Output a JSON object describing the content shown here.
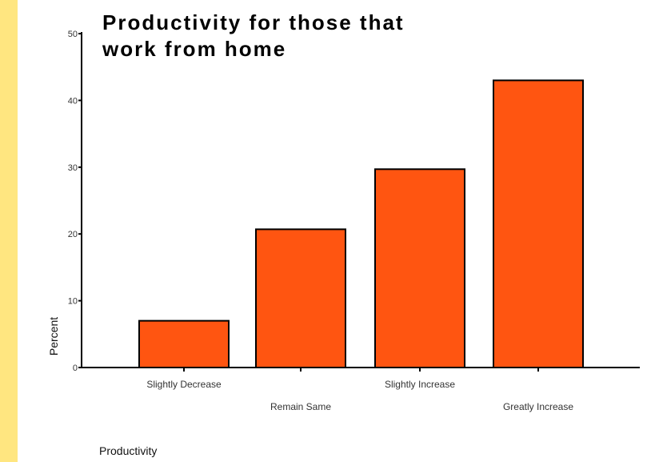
{
  "chart_data": {
    "type": "bar",
    "title_lines": [
      "Productivity for those that",
      "work from home"
    ],
    "categories": [
      "Slightly Decrease",
      "Remain Same",
      "Slightly Increase",
      "Greatly Increase"
    ],
    "values": [
      7,
      20.7,
      29.7,
      43
    ],
    "xlabel": "Productivity",
    "ylabel": "Percent",
    "ylim": [
      0,
      50
    ],
    "yticks": [
      "0",
      "10",
      "20",
      "30",
      "40",
      "50"
    ],
    "bar_color": "#ff5511",
    "grid": false
  },
  "colors": {
    "page_background": "#ffffcc",
    "left_stripe": "#ffe680",
    "panel": "#ffffff"
  }
}
